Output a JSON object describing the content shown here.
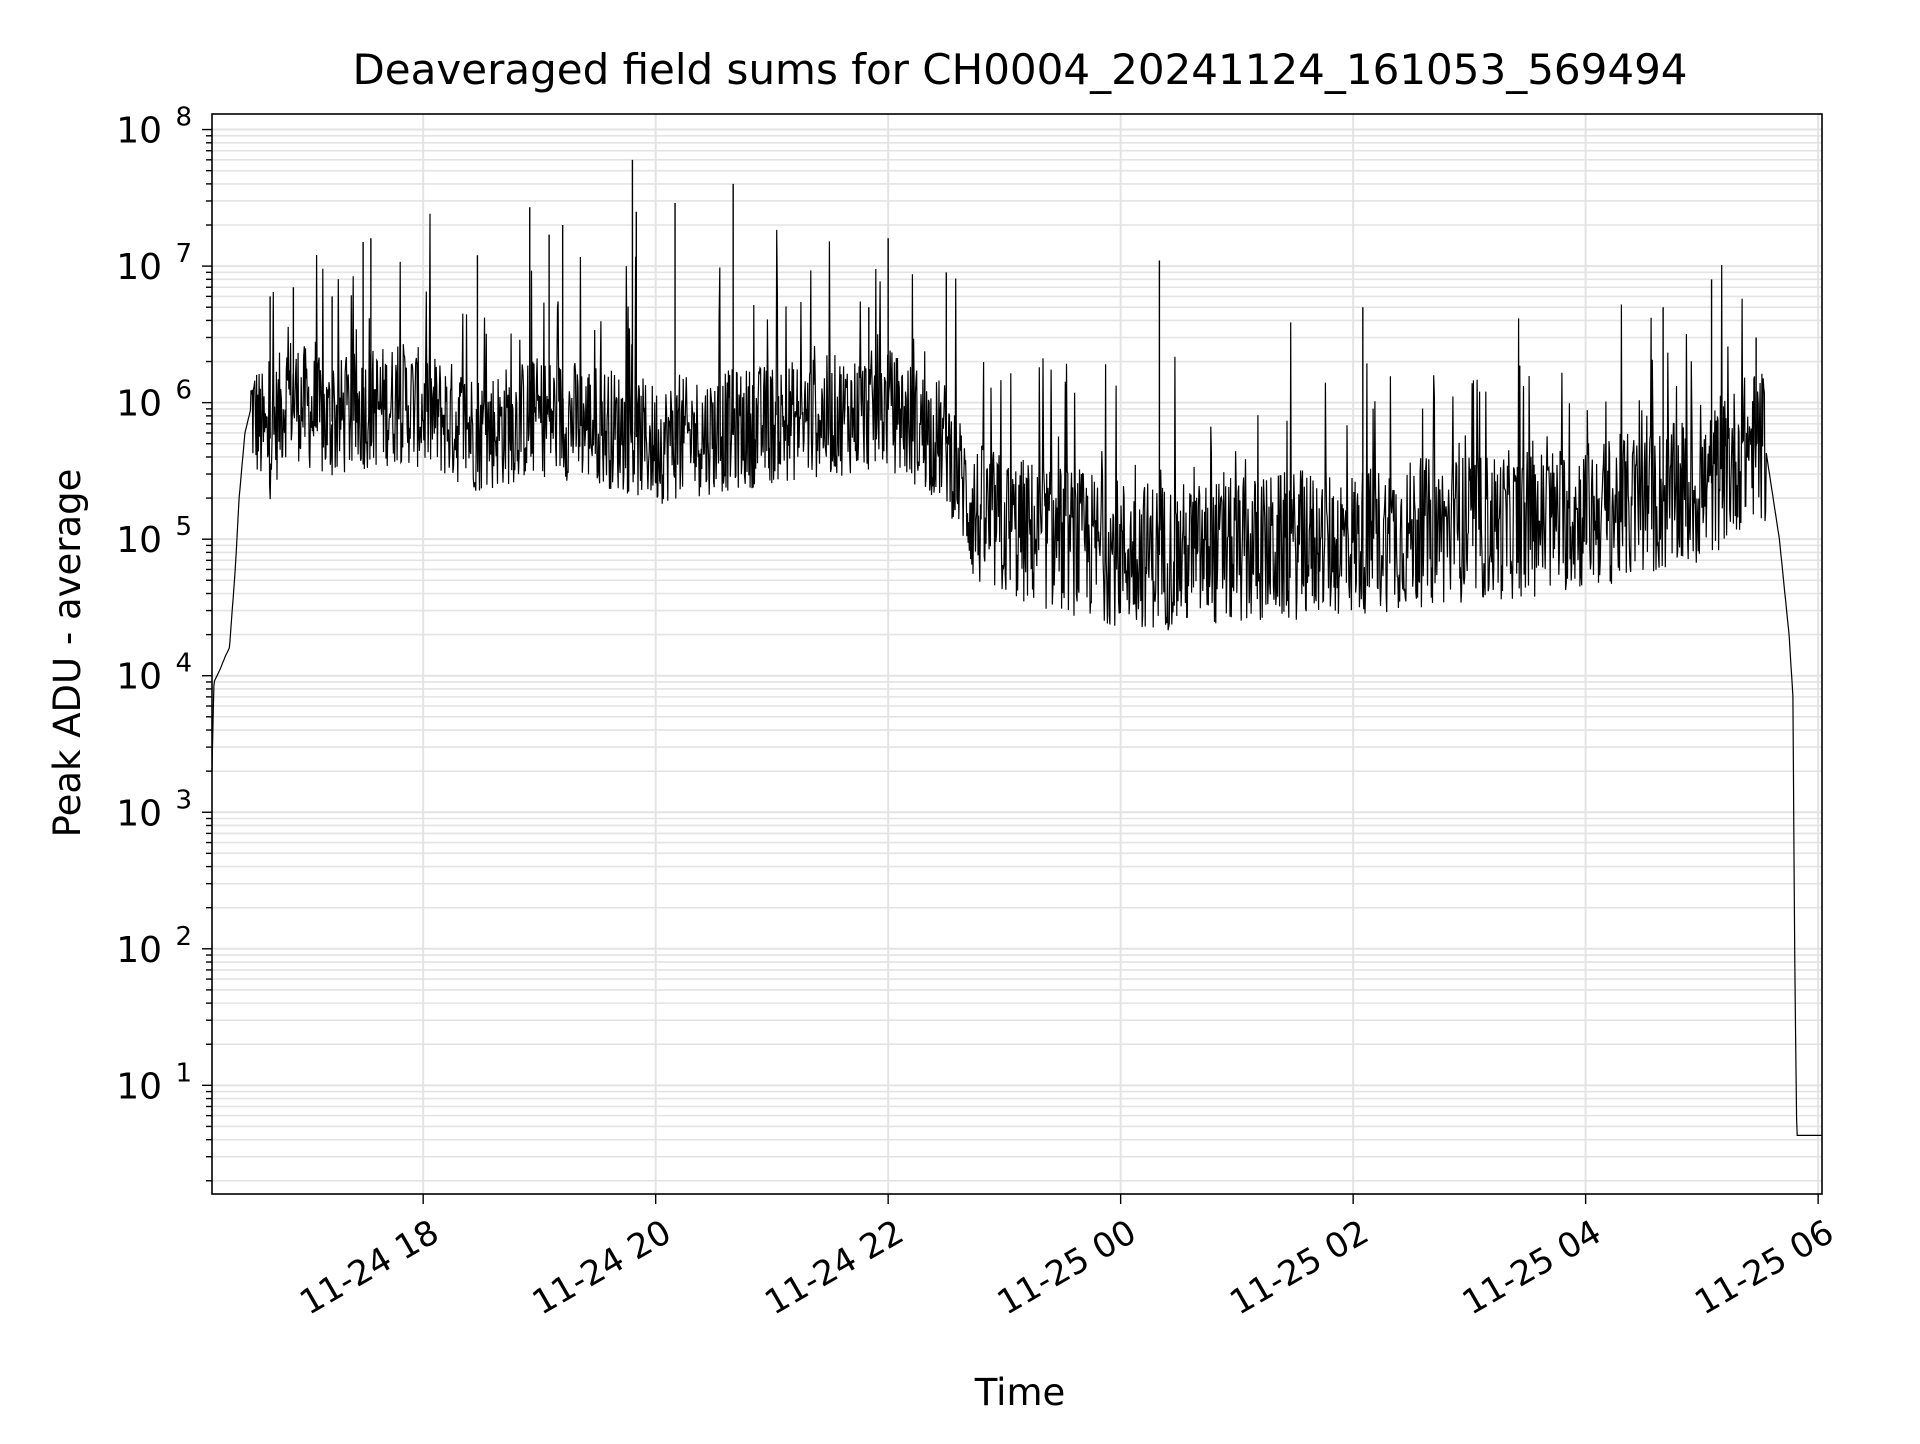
{
  "chart_data": {
    "type": "line",
    "title": "Deaveraged field sums for CH0004_20241124_161053_569494",
    "xlabel": "Time",
    "ylabel": "Peak ADU - average",
    "yscale": "log",
    "ylim": [
      1.6,
      130000000.0
    ],
    "xlim": [
      "2024-11-24 16:11",
      "2024-11-25 06:02"
    ],
    "grid": true,
    "x_ticks": [
      "2024-11-24 18:00",
      "2024-11-24 20:00",
      "2024-11-24 22:00",
      "2024-11-25 00:00",
      "2024-11-25 02:00",
      "2024-11-25 04:00",
      "2024-11-25 06:00"
    ],
    "x_tick_labels": [
      "11-24 18",
      "11-24 20",
      "11-24 22",
      "11-25 00",
      "11-25 02",
      "11-25 04",
      "11-25 06"
    ],
    "y_tick_values": [
      10,
      100,
      1000,
      10000,
      100000,
      1000000,
      10000000,
      100000000
    ],
    "y_tick_labels": [
      {
        "base": "10",
        "exp": "1"
      },
      {
        "base": "10",
        "exp": "2"
      },
      {
        "base": "10",
        "exp": "3"
      },
      {
        "base": "10",
        "exp": "4"
      },
      {
        "base": "10",
        "exp": "5"
      },
      {
        "base": "10",
        "exp": "6"
      },
      {
        "base": "10",
        "exp": "7"
      },
      {
        "base": "10",
        "exp": "8"
      }
    ],
    "series": [
      {
        "color": "#000000",
        "points": [
          [
            "2024-11-24 16:11",
            2000
          ],
          [
            "2024-11-24 16:12",
            9000
          ],
          [
            "2024-11-24 16:15",
            11000
          ],
          [
            "2024-11-24 16:18",
            14000
          ],
          [
            "2024-11-24 16:20",
            16000
          ],
          [
            "2024-11-24 16:23",
            60000
          ],
          [
            "2024-11-24 16:25",
            200000
          ],
          [
            "2024-11-24 16:28",
            600000
          ],
          [
            "2024-11-24 16:31",
            900000
          ],
          [
            "2024-11-24 16:40",
            500000
          ],
          [
            "2024-11-24 16:50",
            1200000
          ],
          [
            "2024-11-24 17:10",
            700000
          ],
          [
            "2024-11-24 17:30",
            900000
          ],
          [
            "2024-11-24 17:50",
            1000000
          ],
          [
            "2024-11-24 18:30",
            600000
          ],
          [
            "2024-11-24 19:00",
            800000
          ],
          [
            "2024-11-24 19:30",
            700000
          ],
          [
            "2024-11-24 20:00",
            500000
          ],
          [
            "2024-11-24 20:30",
            600000
          ],
          [
            "2024-11-24 21:00",
            700000
          ],
          [
            "2024-11-24 21:30",
            800000
          ],
          [
            "2024-11-24 22:00",
            900000
          ],
          [
            "2024-11-24 22:30",
            500000
          ],
          [
            "2024-11-24 22:45",
            150000
          ],
          [
            "2024-11-24 23:00",
            120000
          ],
          [
            "2024-11-24 23:30",
            100000
          ],
          [
            "2024-11-25 00:00",
            80000
          ],
          [
            "2024-11-25 00:30",
            75000
          ],
          [
            "2024-11-25 01:00",
            80000
          ],
          [
            "2024-11-25 01:30",
            90000
          ],
          [
            "2024-11-25 02:00",
            95000
          ],
          [
            "2024-11-25 02:30",
            110000
          ],
          [
            "2024-11-25 03:00",
            120000
          ],
          [
            "2024-11-25 03:30",
            130000
          ],
          [
            "2024-11-25 04:00",
            150000
          ],
          [
            "2024-11-25 04:30",
            180000
          ],
          [
            "2024-11-25 05:00",
            220000
          ],
          [
            "2024-11-25 05:15",
            350000
          ],
          [
            "2024-11-25 05:25",
            500000
          ],
          [
            "2024-11-25 05:33",
            450000
          ],
          [
            "2024-11-25 05:40",
            100000
          ],
          [
            "2024-11-25 05:45",
            20000
          ],
          [
            "2024-11-25 05:47",
            7000
          ],
          [
            "2024-11-25 05:48",
            60
          ],
          [
            "2024-11-25 05:49",
            4.3
          ],
          [
            "2024-11-25 06:02",
            4.3
          ]
        ],
        "spikes": [
          [
            "2024-11-24 16:41",
            6000000
          ],
          [
            "2024-11-24 16:53",
            7000000
          ],
          [
            "2024-11-24 17:13",
            6000000
          ],
          [
            "2024-11-24 17:29",
            15000000
          ],
          [
            "2024-11-24 17:33",
            16000000
          ],
          [
            "2024-11-24 18:28",
            12000000
          ],
          [
            "2024-11-24 18:55",
            27000000
          ],
          [
            "2024-11-24 19:05",
            17000000
          ],
          [
            "2024-11-24 19:12",
            20000000
          ],
          [
            "2024-11-24 19:48",
            60000000
          ],
          [
            "2024-11-24 19:50",
            25000000
          ],
          [
            "2024-11-24 20:10",
            29000000
          ],
          [
            "2024-11-24 20:40",
            40000000
          ],
          [
            "2024-11-24 21:50",
            5000000
          ],
          [
            "2024-11-24 22:00",
            16000000
          ],
          [
            "2024-11-24 22:30",
            9000000
          ],
          [
            "2024-11-25 00:20",
            11000000
          ],
          [
            "2024-11-25 02:05",
            5000000
          ],
          [
            "2024-11-25 04:40",
            5000000
          ],
          [
            "2024-11-25 05:05",
            8000000
          ],
          [
            "2024-11-25 05:28",
            3000000
          ]
        ]
      }
    ]
  }
}
